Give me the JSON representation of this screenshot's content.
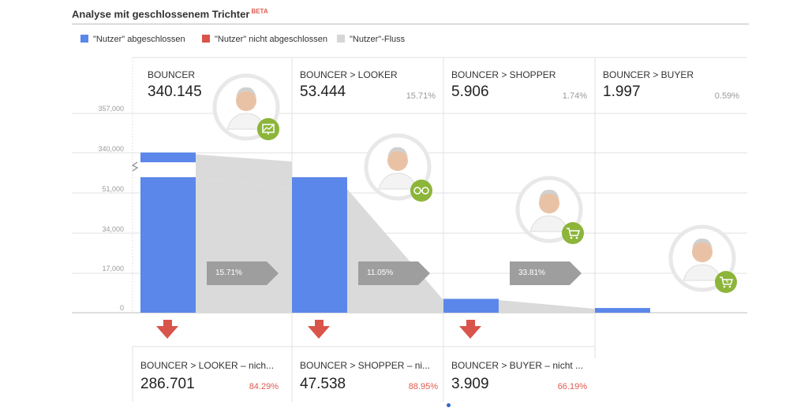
{
  "title": "Analyse mit geschlossenem Trichter",
  "beta": "BETA",
  "legend": [
    {
      "label": "\"Nutzer\" abgeschlossen",
      "color": "#5b87ea"
    },
    {
      "label": "\"Nutzer\" nicht abgeschlossen",
      "color": "#d9544a"
    },
    {
      "label": "\"Nutzer\"-Fluss",
      "color": "#d6d6d6"
    }
  ],
  "chart_data": {
    "type": "bar",
    "title": "Analyse mit geschlossenem Trichter",
    "categories": [
      "BOUNCER",
      "BOUNCER > LOOKER",
      "BOUNCER > SHOPPER",
      "BOUNCER > BUYER"
    ],
    "series": [
      {
        "name": "\"Nutzer\" abgeschlossen",
        "values": [
          340145,
          53444,
          5906,
          1997
        ]
      }
    ],
    "y_ticks": [
      "357,000",
      "340,000",
      "51,000",
      "34,000",
      "17,000",
      "0"
    ],
    "y_axis_break": true,
    "grid": true,
    "stages": [
      {
        "label": "BOUNCER",
        "value": "340.145",
        "pct": ""
      },
      {
        "label": "BOUNCER > LOOKER",
        "value": "53.444",
        "pct": "15.71%"
      },
      {
        "label": "BOUNCER > SHOPPER",
        "value": "5.906",
        "pct": "1.74%"
      },
      {
        "label": "BOUNCER > BUYER",
        "value": "1.997",
        "pct": "0.59%"
      }
    ],
    "flow_rates": [
      "15.71%",
      "11.05%",
      "33.81%"
    ],
    "not_completed": [
      {
        "label": "BOUNCER > LOOKER – nich...",
        "value": "286.701",
        "pct": "84.29%"
      },
      {
        "label": "BOUNCER > SHOPPER – ni...",
        "value": "47.538",
        "pct": "88.95%"
      },
      {
        "label": "BOUNCER > BUYER – nicht ...",
        "value": "3.909",
        "pct": "66.19%"
      }
    ]
  },
  "persona_icons": [
    "monitor-chart-icon",
    "glasses-icon",
    "shopping-cart-icon",
    "cart-checkout-icon"
  ],
  "colors": {
    "completed": "#5b87ea",
    "not_completed": "#d9544a",
    "flow": "#d6d6d6",
    "badge": "#8cb53a"
  }
}
